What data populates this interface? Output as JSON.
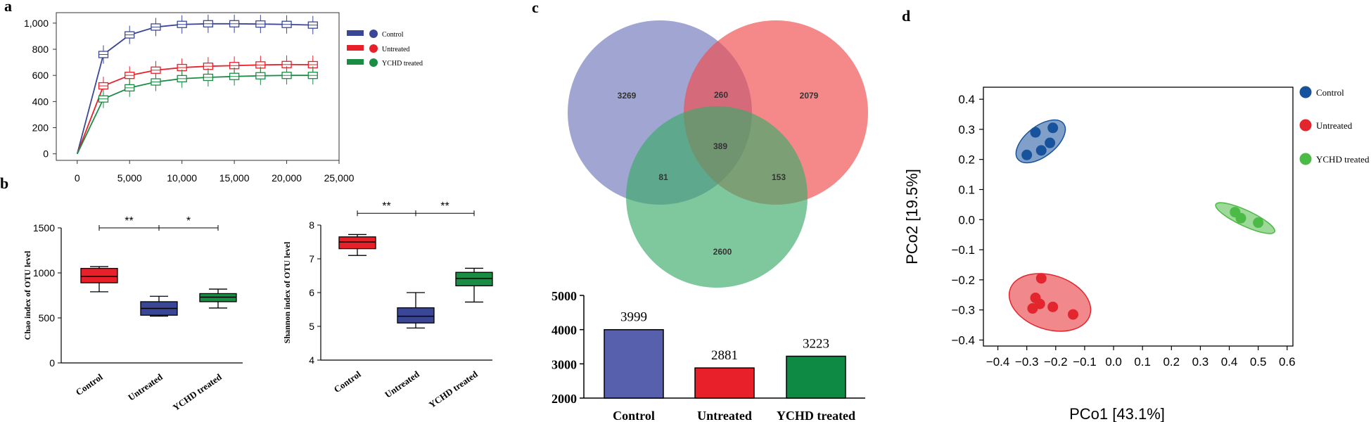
{
  "colors": {
    "control": "#3a4796",
    "untreated": "#e8202a",
    "ychd": "#1a8c43",
    "venn_control": "#6f74b8",
    "venn_untreated": "#ef4a4c",
    "venn_ychd": "#3aab6a",
    "bar_control": "#5760ad",
    "bar_untreated": "#e8202a",
    "bar_ychd": "#0f8a45",
    "pcoa_control": "#17529c",
    "pcoa_untreated": "#e3262e",
    "pcoa_ychd": "#4cba46"
  },
  "panels": {
    "a": "a",
    "b": "b",
    "c": "c",
    "d": "d"
  },
  "chart_data": [
    {
      "id": "a",
      "type": "line",
      "title": "",
      "xlabel": "",
      "ylabel": "",
      "xlim": [
        -2000,
        25000
      ],
      "ylim": [
        -50,
        1080
      ],
      "xticks": [
        0,
        5000,
        10000,
        15000,
        20000,
        25000
      ],
      "xtick_labels": [
        "0",
        "5,000",
        "10,000",
        "15,000",
        "20,000",
        "25,000"
      ],
      "yticks": [
        0,
        200,
        400,
        600,
        800,
        1000
      ],
      "ytick_labels": [
        "0",
        "200",
        "400",
        "600",
        "800",
        "1,000"
      ],
      "legend_position": "top-right",
      "x": [
        0,
        2500,
        5000,
        7500,
        10000,
        12500,
        15000,
        17500,
        20000,
        22500
      ],
      "series": [
        {
          "name": "Control",
          "color_key": "control",
          "values": [
            0,
            760,
            910,
            970,
            990,
            995,
            995,
            993,
            990,
            985
          ]
        },
        {
          "name": "Untreated",
          "color_key": "untreated",
          "values": [
            0,
            520,
            600,
            640,
            660,
            670,
            675,
            680,
            683,
            682
          ]
        },
        {
          "name": "YCHD treated",
          "color_key": "ychd",
          "values": [
            0,
            420,
            505,
            550,
            575,
            585,
            592,
            597,
            600,
            600
          ]
        }
      ]
    },
    {
      "id": "b1",
      "type": "box",
      "ylabel": "Chao index of OTU level",
      "ylim": [
        0,
        1500
      ],
      "yticks": [
        0,
        500,
        1000,
        1500
      ],
      "ytick_labels": [
        "0",
        "500",
        "1000",
        "1500"
      ],
      "categories": [
        "Control",
        "Untreated",
        "YCHD treated"
      ],
      "boxes": [
        {
          "min": 790,
          "q1": 890,
          "median": 960,
          "q3": 1050,
          "max": 1070,
          "color_key": "untreated"
        },
        {
          "min": 520,
          "q1": 530,
          "median": 605,
          "q3": 680,
          "max": 740,
          "color_key": "control"
        },
        {
          "min": 610,
          "q1": 680,
          "median": 730,
          "q3": 770,
          "max": 820,
          "color_key": "ychd"
        }
      ],
      "significance": [
        {
          "from": 0,
          "to": 1,
          "label": "**"
        },
        {
          "from": 1,
          "to": 2,
          "label": "*"
        }
      ],
      "sig_y": 1500
    },
    {
      "id": "b2",
      "type": "box",
      "ylabel": "Shannon index of OTU level",
      "ylim": [
        4,
        8
      ],
      "yticks": [
        4,
        5,
        6,
        7,
        8
      ],
      "ytick_labels": [
        "4",
        "5",
        "6",
        "7",
        "8"
      ],
      "categories": [
        "Control",
        "Untreated",
        "YCHD treated"
      ],
      "boxes": [
        {
          "min": 7.1,
          "q1": 7.3,
          "median": 7.5,
          "q3": 7.65,
          "max": 7.72,
          "color_key": "untreated"
        },
        {
          "min": 4.95,
          "q1": 5.1,
          "median": 5.3,
          "q3": 5.55,
          "max": 6.0,
          "color_key": "control"
        },
        {
          "min": 5.72,
          "q1": 6.2,
          "median": 6.42,
          "q3": 6.6,
          "max": 6.72,
          "color_key": "ychd"
        }
      ],
      "significance": [
        {
          "from": 0,
          "to": 1,
          "label": "**"
        },
        {
          "from": 1,
          "to": 2,
          "label": "**"
        }
      ],
      "sig_y": 8.35
    },
    {
      "id": "c-venn",
      "type": "venn",
      "sets": [
        "Control",
        "Untreated",
        "YCHD treated"
      ],
      "regions": [
        {
          "sets": [
            "Control"
          ],
          "value": "3269"
        },
        {
          "sets": [
            "Untreated"
          ],
          "value": "2079"
        },
        {
          "sets": [
            "YCHD treated"
          ],
          "value": "2600"
        },
        {
          "sets": [
            "Control",
            "Untreated"
          ],
          "value": "260"
        },
        {
          "sets": [
            "Control",
            "YCHD treated"
          ],
          "value": "81"
        },
        {
          "sets": [
            "Untreated",
            "YCHD treated"
          ],
          "value": "153"
        },
        {
          "sets": [
            "Control",
            "Untreated",
            "YCHD treated"
          ],
          "value": "389"
        }
      ]
    },
    {
      "id": "c-bar",
      "type": "bar",
      "categories": [
        "Control",
        "Untreated",
        "YCHD treated"
      ],
      "values": [
        3999,
        2881,
        3223
      ],
      "value_labels": [
        "3999",
        "2881",
        "3223"
      ],
      "ylim": [
        2000,
        5000
      ],
      "yticks": [
        2000,
        3000,
        4000,
        5000
      ],
      "ytick_labels": [
        "2000",
        "3000",
        "4000",
        "5000"
      ],
      "color_keys": [
        "bar_control",
        "bar_untreated",
        "bar_ychd"
      ]
    },
    {
      "id": "d",
      "type": "scatter",
      "xlabel": "PCo1 [43.1%]",
      "ylabel": "PCo2 [19.5%]",
      "xlim": [
        -0.45,
        0.62
      ],
      "ylim": [
        -0.42,
        0.44
      ],
      "xticks": [
        -0.4,
        -0.3,
        -0.2,
        -0.1,
        0.0,
        0.1,
        0.2,
        0.3,
        0.4,
        0.5,
        0.6
      ],
      "xtick_labels": [
        "−0.4",
        "−0.3",
        "−0.2",
        "−0.1",
        "0.0",
        "0.1",
        "0.2",
        "0.3",
        "0.4",
        "0.5",
        "0.6"
      ],
      "yticks": [
        0.4,
        0.3,
        0.2,
        0.1,
        0.0,
        -0.1,
        -0.2,
        -0.3,
        -0.4
      ],
      "ytick_labels": [
        "0.4",
        "0.3",
        "0.2",
        "0.1",
        "0.0",
        "−0.1",
        "−0.2",
        "−0.3",
        "−0.4"
      ],
      "legend_position": "right",
      "series": [
        {
          "name": "Control",
          "color_key": "pcoa_control",
          "points": [
            [
              -0.3,
              0.215
            ],
            [
              -0.27,
              0.29
            ],
            [
              -0.25,
              0.23
            ],
            [
              -0.22,
              0.255
            ],
            [
              -0.21,
              0.305
            ]
          ],
          "ellipse": {
            "cx": -0.252,
            "cy": 0.26,
            "rx": 0.1,
            "ry": 0.05,
            "angle": 38
          }
        },
        {
          "name": "Untreated",
          "color_key": "pcoa_untreated",
          "points": [
            [
              -0.28,
              -0.295
            ],
            [
              -0.27,
              -0.26
            ],
            [
              -0.255,
              -0.28
            ],
            [
              -0.25,
              -0.195
            ],
            [
              -0.21,
              -0.29
            ],
            [
              -0.14,
              -0.315
            ]
          ],
          "ellipse": {
            "cx": -0.22,
            "cy": -0.275,
            "rx": 0.145,
            "ry": 0.09,
            "angle": -18
          }
        },
        {
          "name": "YCHD treated",
          "color_key": "pcoa_ychd",
          "points": [
            [
              0.42,
              0.025
            ],
            [
              0.44,
              0.005
            ],
            [
              0.5,
              -0.01
            ]
          ],
          "ellipse": {
            "cx": 0.455,
            "cy": 0.005,
            "rx": 0.112,
            "ry": 0.026,
            "angle": -25
          }
        }
      ]
    }
  ]
}
